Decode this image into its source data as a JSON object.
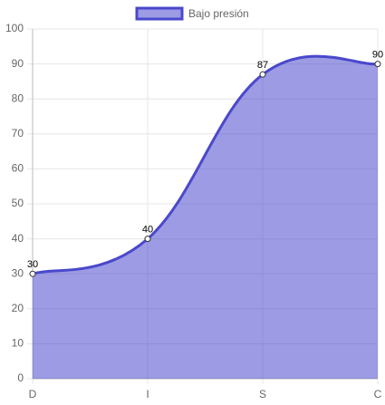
{
  "chart_data": {
    "type": "line",
    "categories": [
      "D",
      "I",
      "S",
      "C"
    ],
    "series": [
      {
        "name": "Bajo presión",
        "color": "#4a48cc",
        "fill": "rgba(74,72,204,0.55)",
        "values": [
          30,
          40,
          87,
          90
        ]
      }
    ],
    "ylim": [
      0,
      100
    ],
    "yticks": [
      0,
      10,
      20,
      30,
      40,
      50,
      60,
      70,
      80,
      90,
      100
    ],
    "grid": true,
    "legend": "top",
    "data_labels": true
  }
}
